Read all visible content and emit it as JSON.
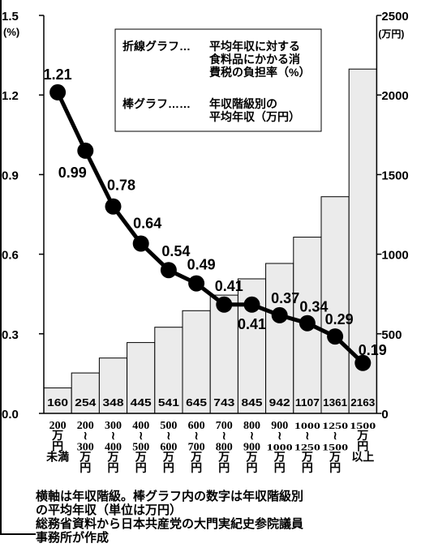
{
  "chart_data": {
    "type": "bar+line",
    "left_axis": {
      "unit": "(%)",
      "ticks": [
        "0.0",
        "0.3",
        "0.6",
        "0.9",
        "1.2",
        "1.5"
      ],
      "range": [
        0,
        1.5
      ]
    },
    "right_axis": {
      "unit": "(万円)",
      "ticks": [
        "0",
        "500",
        "1000",
        "1500",
        "2000",
        "2500"
      ],
      "range": [
        0,
        2500
      ]
    },
    "categories": [
      [
        "200",
        "万",
        "円",
        "未満"
      ],
      [
        "200",
        "≀",
        "300",
        "万",
        "円"
      ],
      [
        "300",
        "≀",
        "400",
        "万",
        "円"
      ],
      [
        "400",
        "≀",
        "500",
        "万",
        "円"
      ],
      [
        "500",
        "≀",
        "600",
        "万",
        "円"
      ],
      [
        "600",
        "≀",
        "700",
        "万",
        "円"
      ],
      [
        "700",
        "≀",
        "800",
        "万",
        "円"
      ],
      [
        "800",
        "≀",
        "900",
        "万",
        "円"
      ],
      [
        "900",
        "≀",
        "1000",
        "万",
        "円"
      ],
      [
        "1000",
        "≀",
        "1250",
        "万",
        "円"
      ],
      [
        "1250",
        "≀",
        "1500",
        "万",
        "円"
      ],
      [
        "1500",
        "万",
        "円",
        "以上"
      ]
    ],
    "bar_series": {
      "values": [
        160,
        254,
        348,
        445,
        541,
        645,
        743,
        845,
        942,
        1107,
        1361,
        2163
      ]
    },
    "bar_labels": [
      "160",
      "254",
      "348",
      "445",
      "541",
      "645",
      "743",
      "845",
      "942",
      "1107",
      "1361",
      "2163"
    ],
    "line_series": {
      "values": [
        1.21,
        0.99,
        0.78,
        0.64,
        0.54,
        0.49,
        0.41,
        0.41,
        0.37,
        0.34,
        0.29,
        0.19
      ]
    },
    "line_labels": [
      "1.21",
      "0.99",
      "0.78",
      "0.64",
      "0.54",
      "0.49",
      "0.41",
      "0.41",
      "0.37",
      "0.34",
      "0.29",
      "0.19"
    ],
    "legend": {
      "line_key": "折線グラフ…",
      "line_desc": [
        "平均年収に対する",
        "食料品にかかる消",
        "費税の負担率（%）"
      ],
      "bar_key": "棒グラフ……",
      "bar_desc": [
        "年収階級別の",
        "平均年収（万円）"
      ]
    },
    "grid": false
  },
  "notes": [
    "横軸は年収階級。棒グラフ内の数字は年収階級別",
    "の平均年収（単位は万円）",
    "総務省資料から日本共産党の大門実紀史参院議員",
    "事務所が作成"
  ],
  "colors": {
    "bar_fill": "#ebebeb",
    "bar_stroke": "#000000",
    "line": "#000000"
  }
}
